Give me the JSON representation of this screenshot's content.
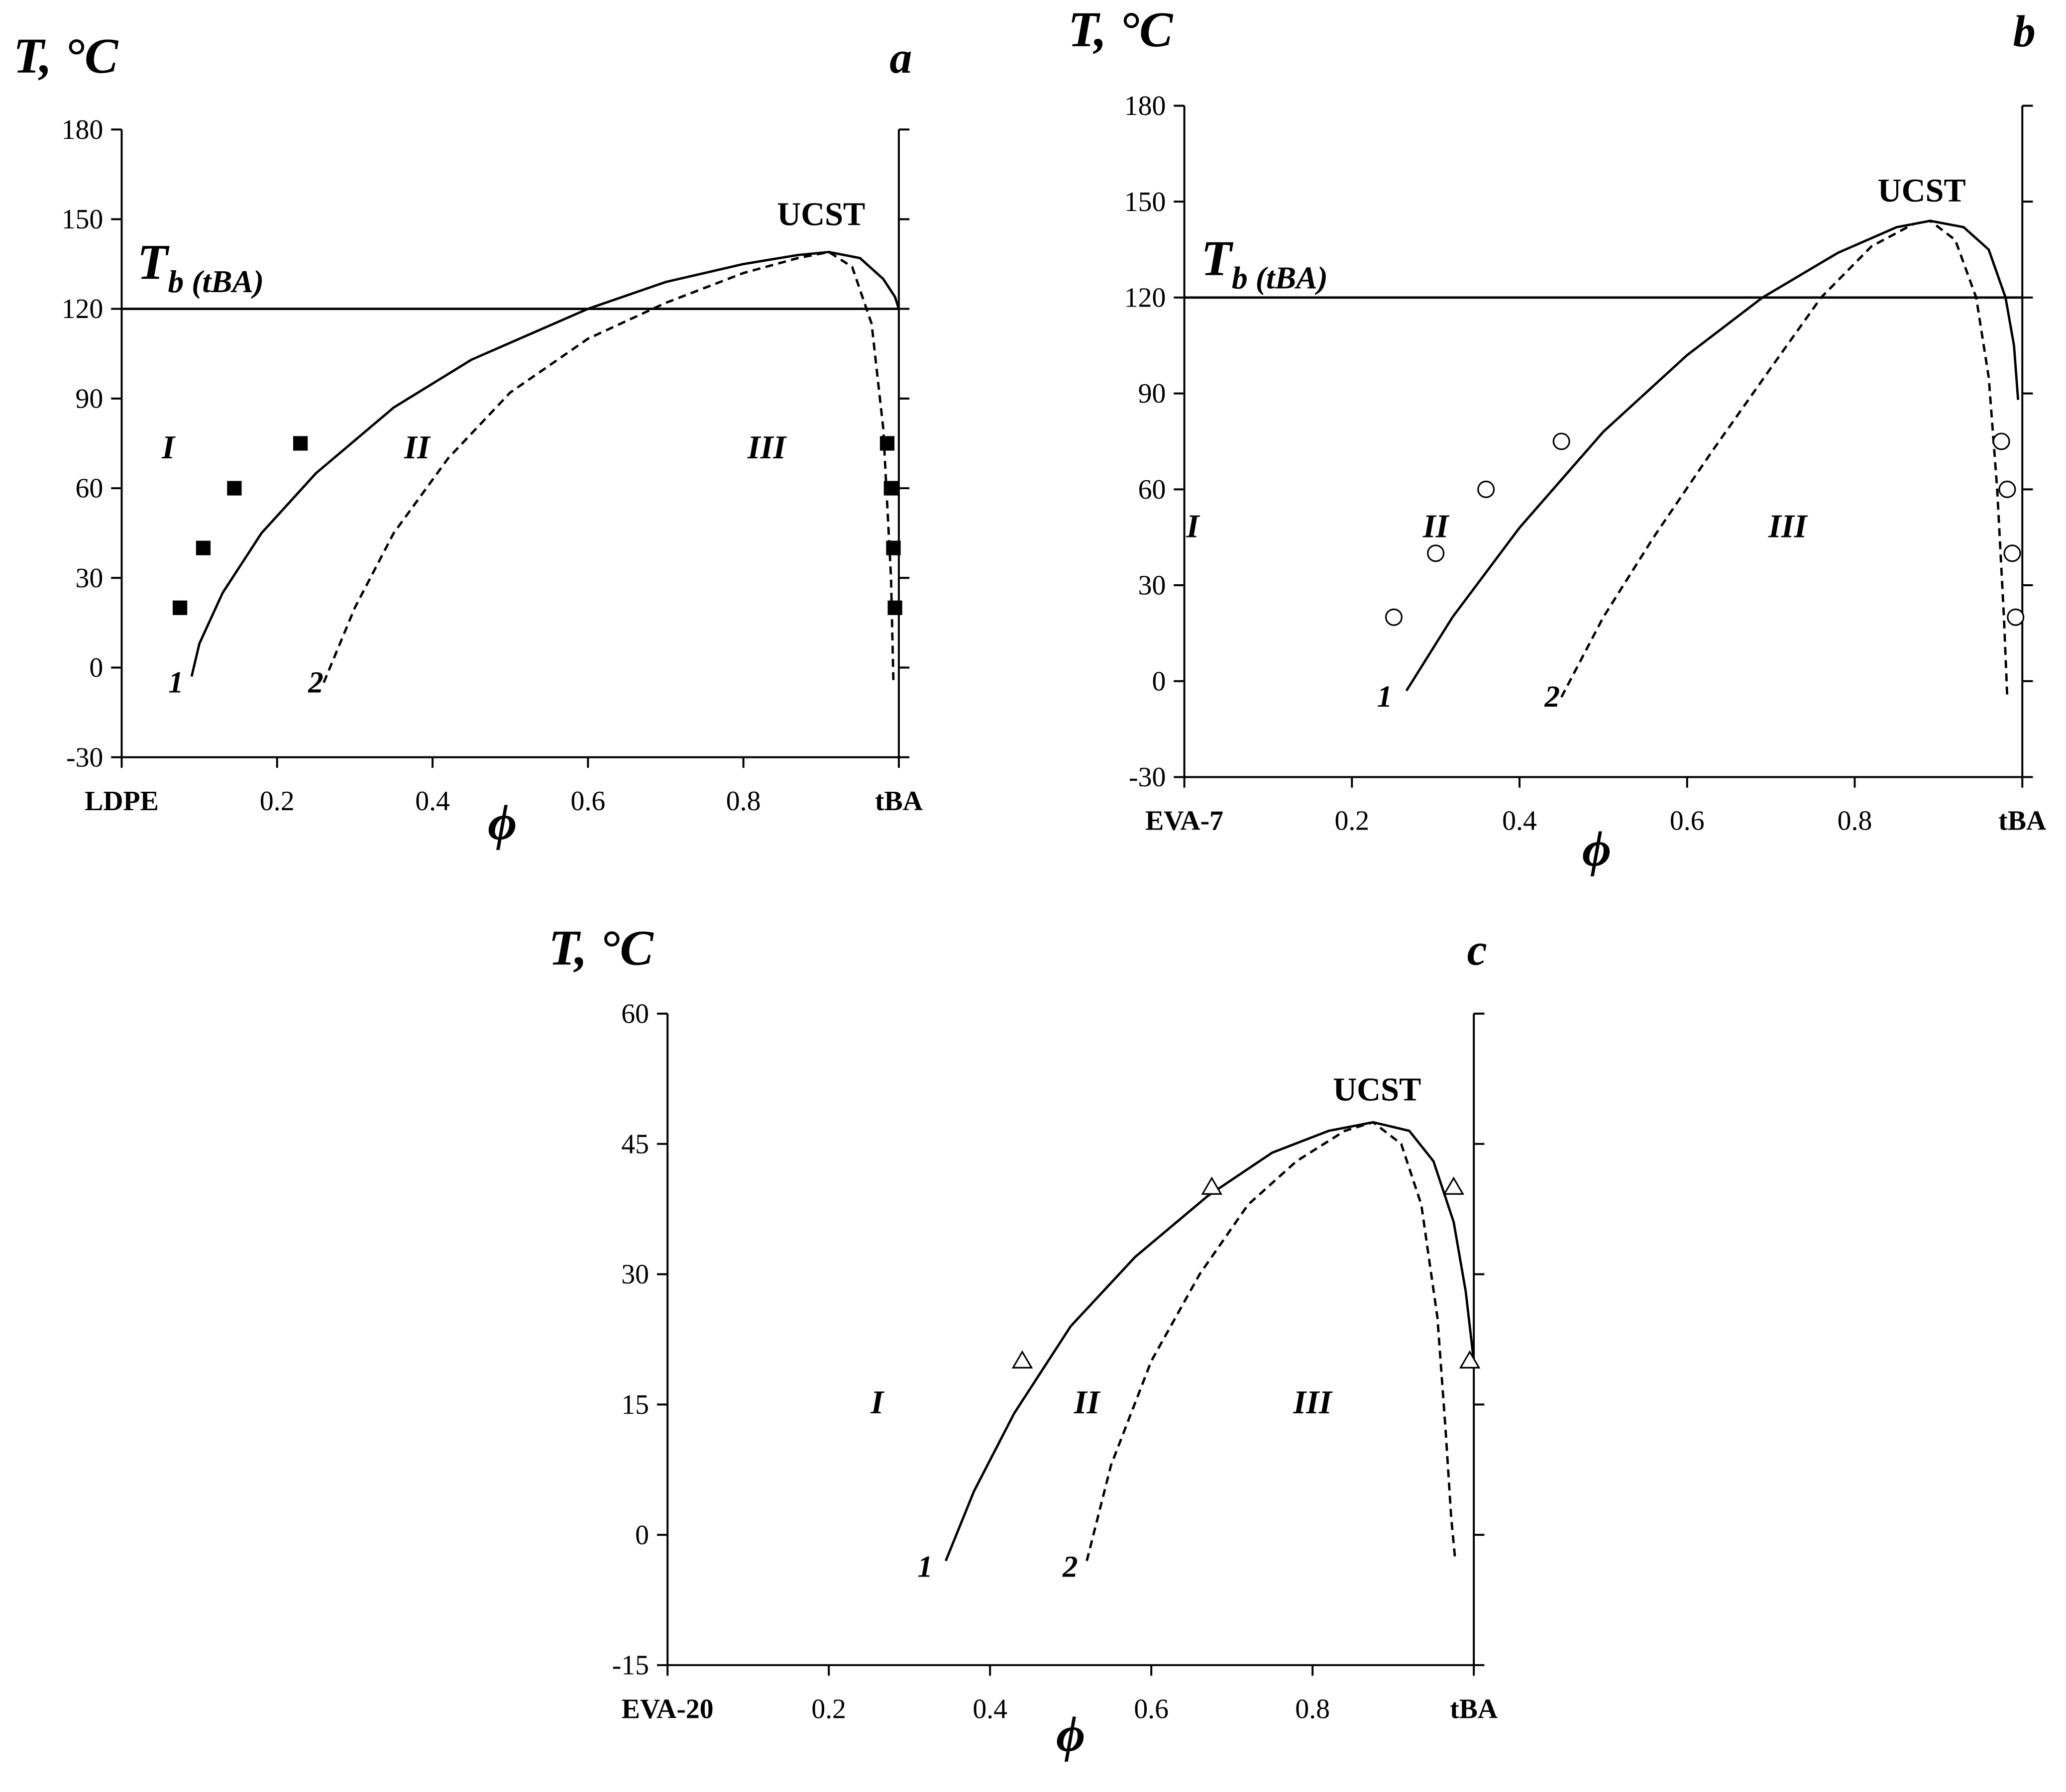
{
  "chart_data": [
    {
      "type": "line",
      "panel_label": "a",
      "y_label": "T, °C",
      "x_label": "ϕ",
      "ucst_label": "UCST",
      "regions": [
        "I",
        "II",
        "III"
      ],
      "xlim": [
        0,
        1
      ],
      "xticks": [
        {
          "value": 0,
          "label": "LDPE"
        },
        0.2,
        0.4,
        0.6,
        0.8,
        {
          "value": 1,
          "label": "tBA"
        }
      ],
      "ylim": [
        -30,
        180
      ],
      "yticks": [
        -30,
        0,
        30,
        60,
        90,
        120,
        150,
        180
      ],
      "grid": false,
      "hline": {
        "value": 120,
        "label": "T",
        "sublabel": "b (tBA)"
      },
      "series": [
        {
          "name": "1",
          "style": "solid",
          "color": "#000000",
          "x": [
            0.09,
            0.1,
            0.13,
            0.18,
            0.25,
            0.35,
            0.45,
            0.6,
            0.7,
            0.8,
            0.87,
            0.91,
            0.95,
            0.98,
            0.995,
            1.0
          ],
          "values": [
            -3,
            8,
            25,
            45,
            65,
            87,
            103,
            120,
            129,
            135,
            138,
            139,
            137,
            130,
            124,
            120
          ]
        },
        {
          "name": "2",
          "style": "dashed",
          "color": "#000000",
          "x": [
            0.26,
            0.3,
            0.35,
            0.42,
            0.5,
            0.6,
            0.7,
            0.8,
            0.87,
            0.91,
            0.94,
            0.965,
            0.98,
            0.99,
            0.993
          ],
          "values": [
            -5,
            20,
            45,
            70,
            92,
            110,
            122,
            132,
            137,
            139,
            134,
            115,
            80,
            30,
            -5
          ]
        }
      ],
      "points": {
        "marker": "square",
        "color": "#000000",
        "x": [
          0.075,
          0.105,
          0.145,
          0.23,
          0.985,
          0.99,
          0.993,
          0.995
        ],
        "values": [
          20,
          40,
          60,
          75,
          75,
          60,
          40,
          20
        ]
      }
    },
    {
      "type": "line",
      "panel_label": "b",
      "y_label": "T, °C",
      "x_label": "ϕ",
      "ucst_label": "UCST",
      "regions": [
        "I",
        "II",
        "III"
      ],
      "xlim": [
        0,
        1
      ],
      "xticks": [
        {
          "value": 0,
          "label": "EVA-7"
        },
        0.2,
        0.4,
        0.6,
        0.8,
        {
          "value": 1,
          "label": "tBA"
        }
      ],
      "ylim": [
        -30,
        180
      ],
      "yticks": [
        -30,
        0,
        30,
        60,
        90,
        120,
        150,
        180
      ],
      "grid": false,
      "hline": {
        "value": 120,
        "label": "T",
        "sublabel": "b (tBA)"
      },
      "series": [
        {
          "name": "1",
          "style": "solid",
          "color": "#000000",
          "x": [
            0.265,
            0.32,
            0.4,
            0.5,
            0.6,
            0.69,
            0.78,
            0.85,
            0.89,
            0.93,
            0.96,
            0.98,
            0.99,
            0.995
          ],
          "values": [
            -3,
            20,
            48,
            78,
            102,
            120,
            134,
            142,
            144,
            142,
            135,
            120,
            105,
            88
          ]
        },
        {
          "name": "2",
          "style": "dashed",
          "color": "#000000",
          "x": [
            0.45,
            0.5,
            0.56,
            0.63,
            0.7,
            0.76,
            0.82,
            0.87,
            0.89,
            0.92,
            0.945,
            0.96,
            0.97,
            0.978,
            0.982
          ],
          "values": [
            -5,
            20,
            45,
            72,
            98,
            120,
            136,
            143,
            144,
            138,
            120,
            95,
            60,
            20,
            -5
          ]
        }
      ],
      "points": {
        "marker": "circle",
        "color": "#000000",
        "x": [
          0.25,
          0.3,
          0.36,
          0.45,
          0.975,
          0.982,
          0.988,
          0.992
        ],
        "values": [
          20,
          40,
          60,
          75,
          75,
          60,
          40,
          20
        ]
      }
    },
    {
      "type": "line",
      "panel_label": "c",
      "y_label": "T, °C",
      "x_label": "ϕ",
      "ucst_label": "UCST",
      "regions": [
        "I",
        "II",
        "III"
      ],
      "xlim": [
        0,
        1
      ],
      "xticks": [
        {
          "value": 0,
          "label": "EVA-20"
        },
        0.2,
        0.4,
        0.6,
        0.8,
        {
          "value": 1,
          "label": "tBA"
        }
      ],
      "ylim": [
        -15,
        60
      ],
      "yticks": [
        -15,
        0,
        15,
        30,
        45,
        60
      ],
      "grid": false,
      "series": [
        {
          "name": "1",
          "style": "solid",
          "color": "#000000",
          "x": [
            0.345,
            0.38,
            0.43,
            0.5,
            0.58,
            0.67,
            0.75,
            0.82,
            0.875,
            0.92,
            0.95,
            0.975,
            0.99,
            1.0
          ],
          "values": [
            -3,
            5,
            14,
            24,
            32,
            39,
            44,
            46.5,
            47.5,
            46.5,
            43,
            36,
            28,
            20
          ]
        },
        {
          "name": "2",
          "style": "dashed",
          "color": "#000000",
          "x": [
            0.52,
            0.55,
            0.6,
            0.66,
            0.72,
            0.78,
            0.84,
            0.875,
            0.91,
            0.935,
            0.955,
            0.965,
            0.972,
            0.977
          ],
          "values": [
            -3,
            8,
            20,
            30,
            38,
            43,
            46.5,
            47.5,
            45,
            38,
            25,
            12,
            2,
            -3
          ]
        }
      ],
      "points": {
        "marker": "triangle",
        "color": "#000000",
        "x": [
          0.44,
          0.675,
          0.975,
          0.995
        ],
        "values": [
          20,
          40,
          40,
          20
        ]
      }
    }
  ]
}
